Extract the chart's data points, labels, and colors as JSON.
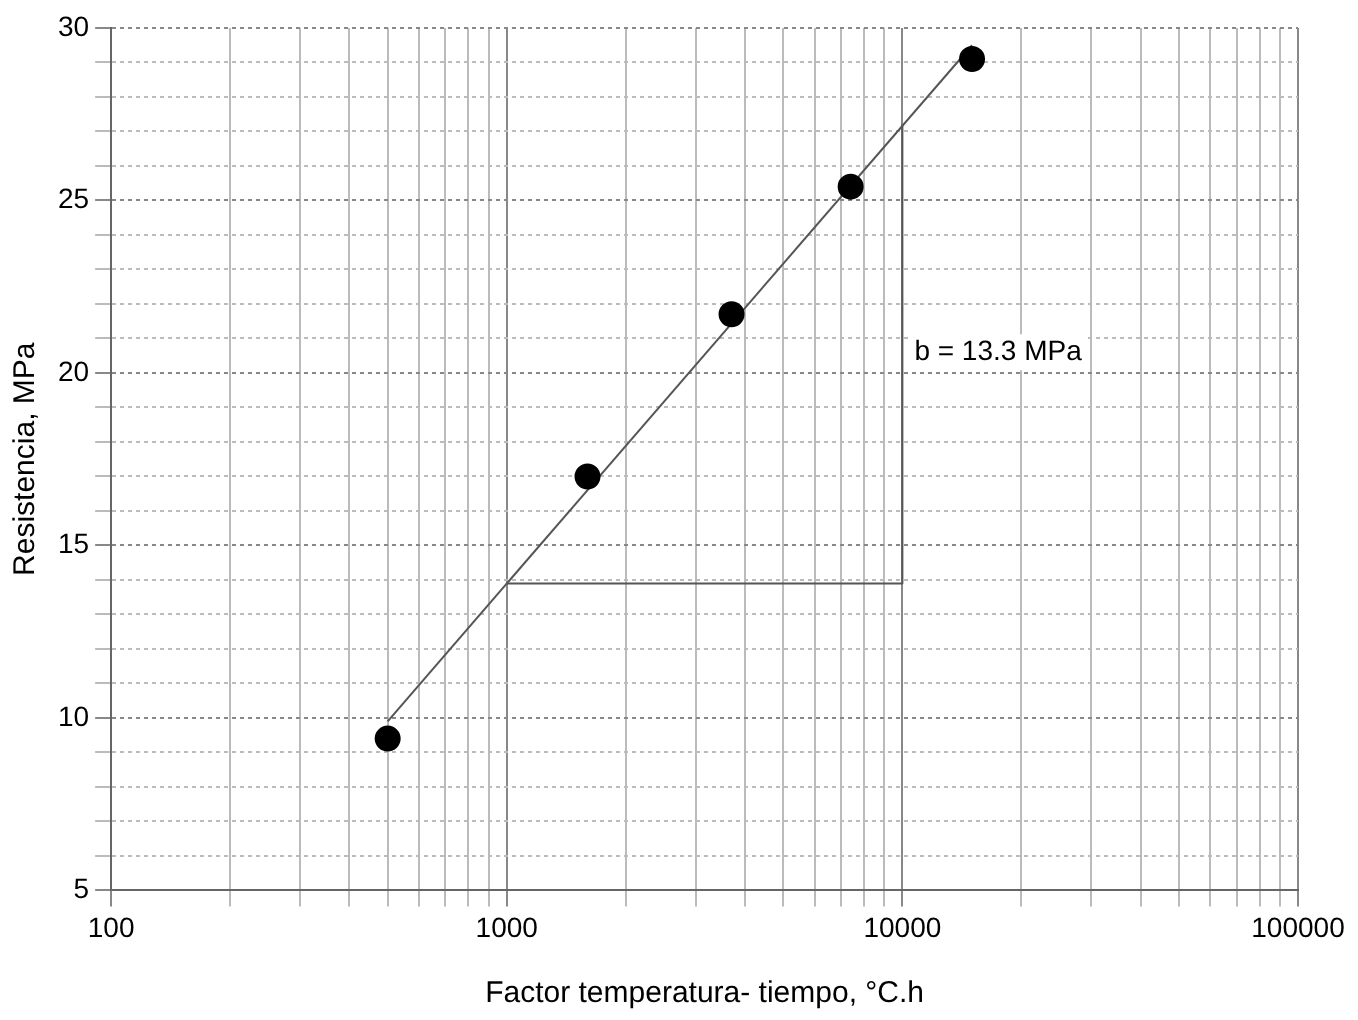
{
  "chart_data": {
    "type": "scatter",
    "xlabel": "Factor temperatura- tiempo, °C.h",
    "ylabel": "Resistencia, MPa",
    "log": "x",
    "grid": true,
    "marker": "circle",
    "xlim": [
      100,
      100000
    ],
    "ylim": [
      5,
      30
    ],
    "xticks": [
      100,
      {
        "value": 200,
        "label": null
      },
      {
        "value": 300,
        "label": null
      },
      {
        "value": 400,
        "label": null
      },
      {
        "value": 500,
        "label": null
      },
      {
        "value": 600,
        "label": null
      },
      {
        "value": 700,
        "label": null
      },
      {
        "value": 800,
        "label": null
      },
      {
        "value": 900,
        "label": null
      },
      1000,
      {
        "value": 2000,
        "label": null
      },
      {
        "value": 3000,
        "label": null
      },
      {
        "value": 4000,
        "label": null
      },
      {
        "value": 5000,
        "label": null
      },
      {
        "value": 6000,
        "label": null
      },
      {
        "value": 7000,
        "label": null
      },
      {
        "value": 8000,
        "label": null
      },
      {
        "value": 9000,
        "label": null
      },
      10000,
      {
        "value": 20000,
        "label": null
      },
      {
        "value": 30000,
        "label": null
      },
      {
        "value": 40000,
        "label": null
      },
      {
        "value": 50000,
        "label": null
      },
      {
        "value": 60000,
        "label": null
      },
      {
        "value": 70000,
        "label": null
      },
      {
        "value": 80000,
        "label": null
      },
      {
        "value": 90000,
        "label": null
      },
      100000
    ],
    "yticks": [
      5,
      {
        "value": 6,
        "label": null
      },
      {
        "value": 7,
        "label": null
      },
      {
        "value": 8,
        "label": null
      },
      {
        "value": 9,
        "label": null
      },
      10,
      {
        "value": 11,
        "label": null
      },
      {
        "value": 12,
        "label": null
      },
      {
        "value": 13,
        "label": null
      },
      {
        "value": 14,
        "label": null
      },
      15,
      {
        "value": 16,
        "label": null
      },
      {
        "value": 17,
        "label": null
      },
      {
        "value": 18,
        "label": null
      },
      {
        "value": 19,
        "label": null
      },
      20,
      {
        "value": 21,
        "label": null
      },
      {
        "value": 22,
        "label": null
      },
      {
        "value": 23,
        "label": null
      },
      {
        "value": 24,
        "label": null
      },
      25,
      {
        "value": 26,
        "label": null
      },
      {
        "value": 27,
        "label": null
      },
      {
        "value": 28,
        "label": null
      },
      {
        "value": 29,
        "label": null
      },
      30
    ],
    "series": [
      {
        "type": "scatter",
        "color": "#000000",
        "x": [
          500,
          1600,
          3700,
          7400,
          15000
        ],
        "values": [
          9.4,
          17.0,
          21.7,
          25.4,
          29.1
        ]
      },
      {
        "type": "line",
        "color": "#555555",
        "marker": "none",
        "x": [
          500,
          15000
        ],
        "values": [
          9.9,
          29.5
        ]
      },
      {
        "type": "line",
        "color": "#555555",
        "marker": "none",
        "x": [
          1000,
          10000,
          10000
        ],
        "values": [
          13.9,
          13.9,
          27.2
        ]
      }
    ],
    "annotations": [
      {
        "text": "b = 13.3 MPa",
        "x": 10000,
        "y": 20.6
      }
    ]
  }
}
